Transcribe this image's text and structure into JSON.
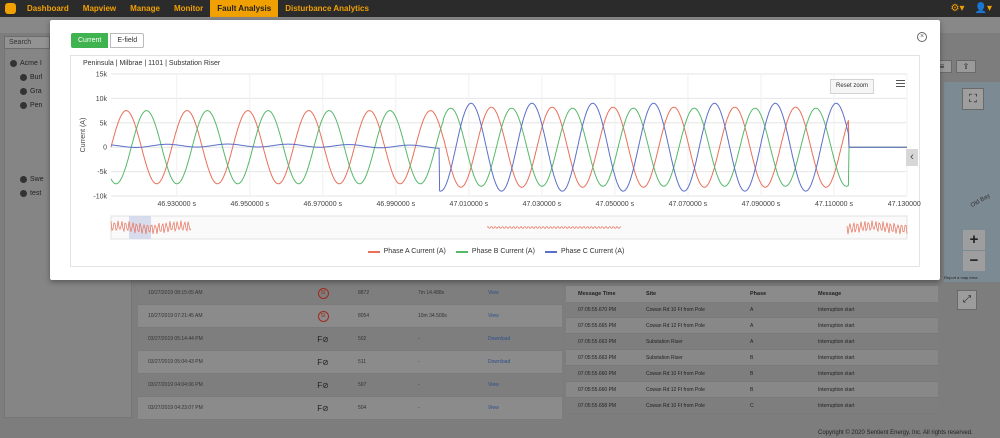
{
  "nav": {
    "items": [
      {
        "label": "Dashboard"
      },
      {
        "label": "Mapview"
      },
      {
        "label": "Manage"
      },
      {
        "label": "Monitor"
      },
      {
        "label": "Fault Analysis",
        "active": true
      },
      {
        "label": "Disturbance Analytics"
      }
    ],
    "gear_icon": "gear-icon",
    "user_icon": "user-icon"
  },
  "background": {
    "search_placeholder": "Search",
    "tree": [
      "Acme I",
      "Burl",
      "Gra",
      "Pen",
      "Swe",
      "test"
    ],
    "events": [
      {
        "time": "10/27/2019 08:15:05 AM",
        "type": "SI",
        "id": "8872",
        "duration": "7m 14.488s",
        "action": "View"
      },
      {
        "time": "10/27/2019 07:21:45 AM",
        "type": "SI",
        "id": "8054",
        "duration": "10m 34.509s",
        "action": "View"
      },
      {
        "time": "03/27/2019 05:14:44 PM",
        "type": "FI",
        "id": "502",
        "duration": "-",
        "action": "Download"
      },
      {
        "time": "03/27/2019 05:04:43 PM",
        "type": "FI",
        "id": "511",
        "duration": "-",
        "action": "Download"
      },
      {
        "time": "03/27/2019 04:04:06 PM",
        "type": "FI",
        "id": "507",
        "duration": "-",
        "action": "View"
      },
      {
        "time": "03/27/2019 04:23:07 PM",
        "type": "FI",
        "id": "504",
        "duration": "-",
        "action": "View"
      }
    ],
    "messages": {
      "headers": [
        "Message Time",
        "Site",
        "Phase",
        "Message"
      ],
      "rows": [
        [
          "07:05:55.670 PM",
          "Cowan Rd 10 Ft from Pole",
          "A",
          "Interruption start"
        ],
        [
          "07:05:55.665 PM",
          "Cowan Rd 12 Ft from Pole",
          "A",
          "Interruption start"
        ],
        [
          "07:05:55.663 PM",
          "Substation Riser",
          "A",
          "Interruption start"
        ],
        [
          "07:05:55.663 PM",
          "Substation Riser",
          "B",
          "Interruption start"
        ],
        [
          "07:05:55.660 PM",
          "Cowan Rd 10 Ft from Pole",
          "B",
          "Interruption start"
        ],
        [
          "07:05:55.660 PM",
          "Cowan Rd 12 Ft from Pole",
          "B",
          "Interruption start"
        ],
        [
          "07:05:55.658 PM",
          "Cowan Rd 10 Ft from Pole",
          "C",
          "Interruption start"
        ]
      ]
    },
    "map": {
      "report": "Report a map error",
      "road_label": "Old Bay",
      "zoom_in": "+",
      "zoom_out": "−"
    },
    "copyright": "Copyright © 2020 Sentient Energy, Inc. All rights reserved."
  },
  "modal": {
    "tabs": [
      "Current",
      "E-field"
    ],
    "active_tab": "Current",
    "reset_zoom": "Reset zoom"
  },
  "chart_data": {
    "type": "line",
    "title": "Peninsula | Milbrae | 1101 | Substation Riser",
    "ylabel": "Current (A)",
    "xlabel": "",
    "x_unit": "s",
    "xlim": [
      46.912,
      47.13
    ],
    "ylim": [
      -10000,
      15000
    ],
    "yticks": [
      "15k",
      "10k",
      "5k",
      "0",
      "-5k",
      "-10k"
    ],
    "xticks": [
      "46.930000 s",
      "46.950000 s",
      "46.970000 s",
      "46.990000 s",
      "47.010000 s",
      "47.030000 s",
      "47.050000 s",
      "47.070000 s",
      "47.090000 s",
      "47.110000 s",
      "47.130000 s"
    ],
    "grid": true,
    "legend_position": "bottom",
    "frequency_hz": 60,
    "series": [
      {
        "name": "Phase A Current (A)",
        "color": "#e8705a",
        "segments": [
          {
            "x0": 46.912,
            "x1": 47.003,
            "amplitude": 7500,
            "phase_deg": 0
          },
          {
            "x0": 47.003,
            "x1": 47.114,
            "amplitude": 8200,
            "phase_deg": 0
          }
        ],
        "after": {
          "x0": 47.114,
          "value": 0
        }
      },
      {
        "name": "Phase B Current (A)",
        "color": "#56b86a",
        "segments": [
          {
            "x0": 46.912,
            "x1": 47.003,
            "amplitude": 7500,
            "phase_deg": -120
          },
          {
            "x0": 47.003,
            "x1": 47.114,
            "amplitude": 8000,
            "phase_deg": -120
          }
        ],
        "after": {
          "x0": 47.114,
          "value": 0
        }
      },
      {
        "name": "Phase C Current (A)",
        "color": "#5b6fc8",
        "segments": [
          {
            "x0": 46.912,
            "x1": 47.002,
            "amplitude": 300,
            "phase_deg": 120,
            "offset": 200
          },
          {
            "x0": 47.002,
            "x1": 47.114,
            "amplitude": 9000,
            "phase_deg": 120
          }
        ],
        "after": {
          "x0": 47.114,
          "value": 0
        }
      }
    ],
    "navigator": {
      "visible": true
    }
  }
}
